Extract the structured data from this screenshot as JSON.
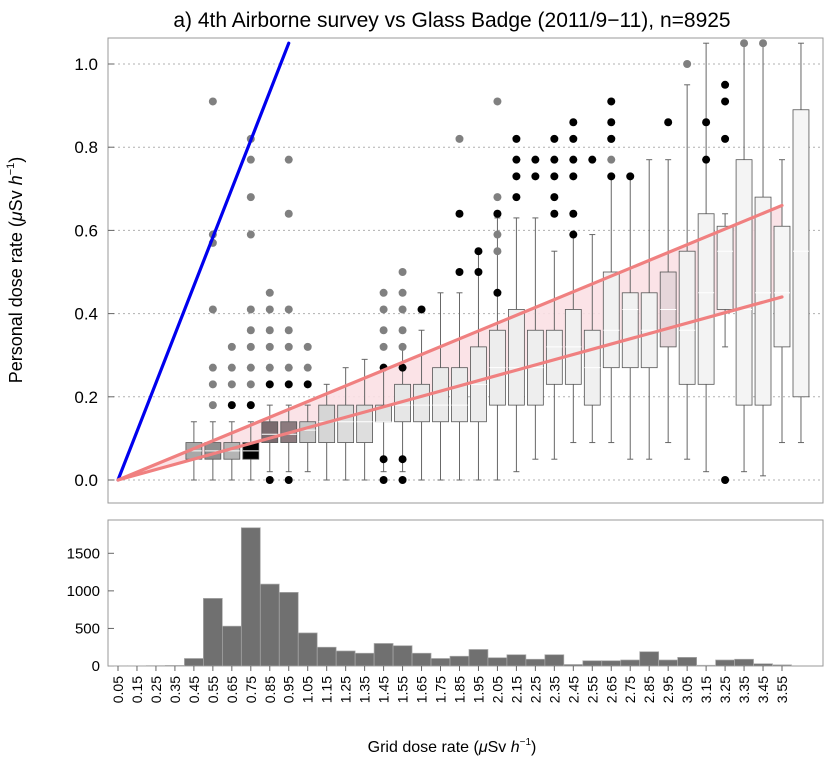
{
  "chart_data": [
    {
      "type": "box",
      "title": "a) 4th Airborne survey vs Glass Badge (2011/9−11), n=8925",
      "ylabel": "Personal dose rate (μSv h⁻¹)",
      "ylabel_parts": {
        "main": "Personal dose rate (",
        "mu": "μ",
        "unit": "Sv ",
        "h": "h",
        "exp": "−1",
        "close": ")"
      },
      "ylim": [
        -0.05,
        1.05
      ],
      "yticks": [
        "0.0",
        "0.2",
        "0.4",
        "0.6",
        "0.8",
        "1.0"
      ],
      "ytick_values": [
        0,
        0.2,
        0.4,
        0.6,
        0.8,
        1.0
      ],
      "grid": "horizontal dotted",
      "categories": [
        "0.05",
        "0.15",
        "0.25",
        "0.35",
        "0.45",
        "0.55",
        "0.65",
        "0.75",
        "0.85",
        "0.95",
        "1.05",
        "1.15",
        "1.25",
        "1.35",
        "1.45",
        "1.55",
        "1.65",
        "1.75",
        "1.85",
        "1.95",
        "2.05",
        "2.15",
        "2.25",
        "2.35",
        "2.45",
        "2.55",
        "2.65",
        "2.75",
        "2.85",
        "2.95",
        "3.05",
        "3.15",
        "3.25",
        "3.35",
        "3.45",
        "3.55"
      ],
      "boxes": [
        {
          "x": 0.45,
          "q1": 0.05,
          "med": 0.07,
          "q3": 0.09,
          "lo": 0.0,
          "hi": 0.14,
          "shade": "#a8a8a8"
        },
        {
          "x": 0.55,
          "q1": 0.05,
          "med": 0.07,
          "q3": 0.09,
          "lo": 0.0,
          "hi": 0.14,
          "shade": "#8e8e8e"
        },
        {
          "x": 0.65,
          "q1": 0.05,
          "med": 0.07,
          "q3": 0.09,
          "lo": 0.0,
          "hi": 0.14,
          "shade": "#b4b4b4"
        },
        {
          "x": 0.75,
          "q1": 0.05,
          "med": 0.07,
          "q3": 0.09,
          "lo": 0.0,
          "hi": 0.14,
          "shade": "#000000"
        },
        {
          "x": 0.85,
          "q1": 0.09,
          "med": 0.11,
          "q3": 0.14,
          "lo": 0.02,
          "hi": 0.18,
          "shade": "#7a6a6e"
        },
        {
          "x": 0.95,
          "q1": 0.09,
          "med": 0.11,
          "q3": 0.14,
          "lo": 0.02,
          "hi": 0.18,
          "shade": "#8c7a7e"
        },
        {
          "x": 1.05,
          "q1": 0.09,
          "med": 0.12,
          "q3": 0.14,
          "lo": 0.02,
          "hi": 0.18,
          "shade": "#c8c8c8"
        },
        {
          "x": 1.15,
          "q1": 0.09,
          "med": 0.14,
          "q3": 0.18,
          "lo": 0.0,
          "hi": 0.23,
          "shade": "#d6d6d6"
        },
        {
          "x": 1.25,
          "q1": 0.09,
          "med": 0.14,
          "q3": 0.18,
          "lo": 0.0,
          "hi": 0.27,
          "shade": "#dcdcdc"
        },
        {
          "x": 1.35,
          "q1": 0.09,
          "med": 0.14,
          "q3": 0.18,
          "lo": 0.0,
          "hi": 0.29,
          "shade": "#dedede"
        },
        {
          "x": 1.45,
          "q1": 0.14,
          "med": 0.14,
          "q3": 0.18,
          "lo": 0.02,
          "hi": 0.27,
          "shade": "#e2e2e2"
        },
        {
          "x": 1.55,
          "q1": 0.14,
          "med": 0.18,
          "q3": 0.23,
          "lo": 0.02,
          "hi": 0.32,
          "shade": "#e6e6e6"
        },
        {
          "x": 1.65,
          "q1": 0.14,
          "med": 0.18,
          "q3": 0.23,
          "lo": 0.0,
          "hi": 0.36,
          "shade": "#e8e8e8"
        },
        {
          "x": 1.75,
          "q1": 0.14,
          "med": 0.18,
          "q3": 0.27,
          "lo": 0.0,
          "hi": 0.45,
          "shade": "#eaeaea"
        },
        {
          "x": 1.85,
          "q1": 0.14,
          "med": 0.18,
          "q3": 0.27,
          "lo": 0.0,
          "hi": 0.45,
          "shade": "#ebebeb"
        },
        {
          "x": 1.95,
          "q1": 0.14,
          "med": 0.23,
          "q3": 0.32,
          "lo": 0.0,
          "hi": 0.55,
          "shade": "#ececec"
        },
        {
          "x": 2.05,
          "q1": 0.18,
          "med": 0.27,
          "q3": 0.36,
          "lo": 0.0,
          "hi": 0.63,
          "shade": "#ededed"
        },
        {
          "x": 2.15,
          "q1": 0.18,
          "med": 0.27,
          "q3": 0.41,
          "lo": 0.02,
          "hi": 0.63,
          "shade": "#eeeeee"
        },
        {
          "x": 2.25,
          "q1": 0.18,
          "med": 0.27,
          "q3": 0.36,
          "lo": 0.05,
          "hi": 0.63,
          "shade": "#eeeeee"
        },
        {
          "x": 2.35,
          "q1": 0.23,
          "med": 0.32,
          "q3": 0.36,
          "lo": 0.05,
          "hi": 0.55,
          "shade": "#efefef"
        },
        {
          "x": 2.45,
          "q1": 0.23,
          "med": 0.32,
          "q3": 0.41,
          "lo": 0.09,
          "hi": 0.59,
          "shade": "#f0f0f0"
        },
        {
          "x": 2.55,
          "q1": 0.18,
          "med": 0.27,
          "q3": 0.36,
          "lo": 0.09,
          "hi": 0.59,
          "shade": "#f0f0f0"
        },
        {
          "x": 2.65,
          "q1": 0.27,
          "med": 0.36,
          "q3": 0.5,
          "lo": 0.09,
          "hi": 0.73,
          "shade": "#f1f1f1"
        },
        {
          "x": 2.75,
          "q1": 0.27,
          "med": 0.41,
          "q3": 0.45,
          "lo": 0.05,
          "hi": 0.73,
          "shade": "#f1f1f1"
        },
        {
          "x": 2.85,
          "q1": 0.27,
          "med": 0.36,
          "q3": 0.45,
          "lo": 0.05,
          "hi": 0.77,
          "shade": "#f2f2f2"
        },
        {
          "x": 2.95,
          "q1": 0.32,
          "med": 0.41,
          "q3": 0.5,
          "lo": 0.09,
          "hi": 0.77,
          "shade": "#e6d6da"
        },
        {
          "x": 3.05,
          "q1": 0.23,
          "med": 0.36,
          "q3": 0.55,
          "lo": 0.05,
          "hi": 0.95,
          "shade": "#f2f2f2"
        },
        {
          "x": 3.15,
          "q1": 0.23,
          "med": 0.45,
          "q3": 0.64,
          "lo": 0.02,
          "hi": 1.05,
          "shade": "#f3f3f3"
        },
        {
          "x": 3.25,
          "q1": 0.41,
          "med": 0.55,
          "q3": 0.61,
          "lo": 0.32,
          "hi": 0.64,
          "shade": "#f3f3f3"
        },
        {
          "x": 3.35,
          "q1": 0.18,
          "med": 0.41,
          "q3": 0.77,
          "lo": 0.02,
          "hi": 1.05,
          "shade": "#f4f4f4"
        },
        {
          "x": 3.45,
          "q1": 0.18,
          "med": 0.45,
          "q3": 0.68,
          "lo": 0.01,
          "hi": 1.05,
          "shade": "#f4f4f4"
        },
        {
          "x": 3.55,
          "q1": 0.32,
          "med": 0.45,
          "q3": 0.61,
          "lo": 0.09,
          "hi": 0.77,
          "shade": "#f5f5f5"
        },
        {
          "x": 3.65,
          "q1": 0.2,
          "med": 0.55,
          "q3": 0.89,
          "lo": 0.09,
          "hi": 1.05,
          "shade": "#f5f5f5"
        }
      ],
      "outliers_gray": [
        [
          0.55,
          0.91
        ],
        [
          0.55,
          0.59
        ],
        [
          0.55,
          0.57
        ],
        [
          0.55,
          0.41
        ],
        [
          0.55,
          0.27
        ],
        [
          0.55,
          0.23
        ],
        [
          0.55,
          0.18
        ],
        [
          0.65,
          0.32
        ],
        [
          0.65,
          0.27
        ],
        [
          0.65,
          0.23
        ],
        [
          0.75,
          0.82
        ],
        [
          0.75,
          0.77
        ],
        [
          0.75,
          0.68
        ],
        [
          0.75,
          0.59
        ],
        [
          0.75,
          0.41
        ],
        [
          0.75,
          0.36
        ],
        [
          0.75,
          0.32
        ],
        [
          0.75,
          0.27
        ],
        [
          0.75,
          0.23
        ],
        [
          0.85,
          0.45
        ],
        [
          0.85,
          0.41
        ],
        [
          0.85,
          0.36
        ],
        [
          0.85,
          0.32
        ],
        [
          0.85,
          0.27
        ],
        [
          0.95,
          0.77
        ],
        [
          0.95,
          0.64
        ],
        [
          0.95,
          0.41
        ],
        [
          0.95,
          0.36
        ],
        [
          0.95,
          0.32
        ],
        [
          0.95,
          0.27
        ],
        [
          1.05,
          0.32
        ],
        [
          1.05,
          0.27
        ],
        [
          1.45,
          0.45
        ],
        [
          1.45,
          0.41
        ],
        [
          1.45,
          0.36
        ],
        [
          1.45,
          0.32
        ],
        [
          1.55,
          0.5
        ],
        [
          1.55,
          0.45
        ],
        [
          1.55,
          0.41
        ],
        [
          1.55,
          0.36
        ],
        [
          1.55,
          0.32
        ],
        [
          1.85,
          0.82
        ],
        [
          2.05,
          0.68
        ],
        [
          2.05,
          0.64
        ],
        [
          2.05,
          0.59
        ],
        [
          2.05,
          0.55
        ],
        [
          2.05,
          0.91
        ],
        [
          2.65,
          0.82
        ],
        [
          2.65,
          0.77
        ],
        [
          3.05,
          1.0
        ],
        [
          3.35,
          1.05
        ],
        [
          3.45,
          1.05
        ]
      ],
      "outliers_black": [
        [
          0.65,
          0.18
        ],
        [
          0.75,
          0.18
        ],
        [
          0.85,
          0.23
        ],
        [
          0.85,
          0.0
        ],
        [
          0.95,
          0.23
        ],
        [
          0.95,
          0.0
        ],
        [
          1.05,
          0.23
        ],
        [
          1.45,
          0.27
        ],
        [
          1.45,
          0.05
        ],
        [
          1.45,
          0.0
        ],
        [
          1.55,
          0.27
        ],
        [
          1.55,
          0.05
        ],
        [
          1.55,
          0.0
        ],
        [
          1.65,
          0.41
        ],
        [
          1.85,
          0.64
        ],
        [
          1.85,
          0.5
        ],
        [
          1.95,
          0.55
        ],
        [
          1.95,
          0.5
        ],
        [
          2.05,
          0.45
        ],
        [
          2.05,
          0.64
        ],
        [
          2.15,
          0.82
        ],
        [
          2.15,
          0.77
        ],
        [
          2.15,
          0.73
        ],
        [
          2.15,
          0.68
        ],
        [
          2.25,
          0.77
        ],
        [
          2.25,
          0.73
        ],
        [
          2.35,
          0.82
        ],
        [
          2.35,
          0.77
        ],
        [
          2.35,
          0.73
        ],
        [
          2.35,
          0.68
        ],
        [
          2.35,
          0.64
        ],
        [
          2.45,
          0.86
        ],
        [
          2.45,
          0.82
        ],
        [
          2.45,
          0.77
        ],
        [
          2.45,
          0.73
        ],
        [
          2.45,
          0.64
        ],
        [
          2.45,
          0.59
        ],
        [
          2.55,
          0.77
        ],
        [
          2.65,
          0.91
        ],
        [
          2.65,
          0.86
        ],
        [
          2.65,
          0.82
        ],
        [
          2.65,
          0.73
        ],
        [
          2.75,
          0.73
        ],
        [
          2.95,
          0.86
        ],
        [
          3.15,
          0.86
        ],
        [
          3.15,
          0.77
        ],
        [
          3.25,
          0.95
        ],
        [
          3.25,
          0.91
        ],
        [
          3.25,
          0.82
        ],
        [
          3.25,
          0.0
        ]
      ],
      "lines": [
        {
          "name": "blue line",
          "color": "#0000ee",
          "points": [
            [
              0.05,
              0.0
            ],
            [
              0.95,
              1.05
            ]
          ]
        },
        {
          "name": "upper red line",
          "color": "#f08080",
          "points": [
            [
              0.05,
              0.0
            ],
            [
              3.55,
              0.66
            ]
          ]
        },
        {
          "name": "lower red line",
          "color": "#f08080",
          "points": [
            [
              0.05,
              0.0
            ],
            [
              3.55,
              0.44
            ]
          ]
        }
      ],
      "band_fill": "#fbe0e4",
      "colors": {
        "red": "#f08080",
        "blue": "#0000ee",
        "outlier_gray": "#808080",
        "outlier_black": "#000000"
      }
    },
    {
      "type": "bar",
      "xlabel": "Grid dose rate (μSv h⁻¹)",
      "xlabel_parts": {
        "main": "Grid dose rate (",
        "mu": "μ",
        "unit": "Sv ",
        "h": "h",
        "exp": "−1",
        "close": ")"
      },
      "ylim": [
        0,
        1950
      ],
      "yticks": [
        "0",
        "500",
        "1000",
        "1500"
      ],
      "ytick_values": [
        0,
        500,
        1000,
        1500
      ],
      "categories": [
        "0.05",
        "0.15",
        "0.25",
        "0.35",
        "0.45",
        "0.55",
        "0.65",
        "0.75",
        "0.85",
        "0.95",
        "1.05",
        "1.15",
        "1.25",
        "1.35",
        "1.45",
        "1.55",
        "1.65",
        "1.75",
        "1.85",
        "1.95",
        "2.05",
        "2.15",
        "2.25",
        "2.35",
        "2.45",
        "2.55",
        "2.65",
        "2.75",
        "2.85",
        "2.95",
        "3.05",
        "3.15",
        "3.25",
        "3.35",
        "3.45",
        "3.55"
      ],
      "values": [
        3,
        3,
        5,
        8,
        100,
        900,
        530,
        1840,
        1090,
        980,
        440,
        250,
        200,
        170,
        300,
        270,
        170,
        100,
        130,
        220,
        110,
        150,
        90,
        150,
        20,
        70,
        70,
        80,
        190,
        80,
        115,
        10,
        80,
        90,
        30,
        15
      ],
      "bar_color": "#707070"
    }
  ]
}
